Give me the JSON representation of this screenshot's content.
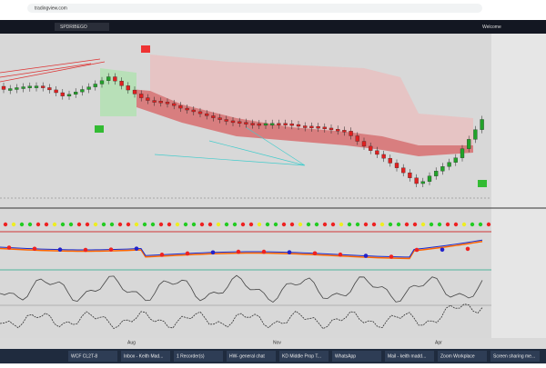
{
  "browser": {
    "url": "tradingview.com",
    "welcome": "Welcome"
  },
  "toolbar": {
    "tab": "SPDRIBEGO"
  },
  "time_axis": [
    "Aug",
    "Nov",
    "Apr"
  ],
  "taskbar": [
    "WCF CL2T-8",
    "Inbox - Keith Mad...",
    "1 Recorder(s)",
    "HW- general chat",
    "KD Middle Prop T...",
    "WhatsApp",
    "Mail - keith madd...",
    "Zoom Workplace",
    "Screen sharing me..."
  ]
}
